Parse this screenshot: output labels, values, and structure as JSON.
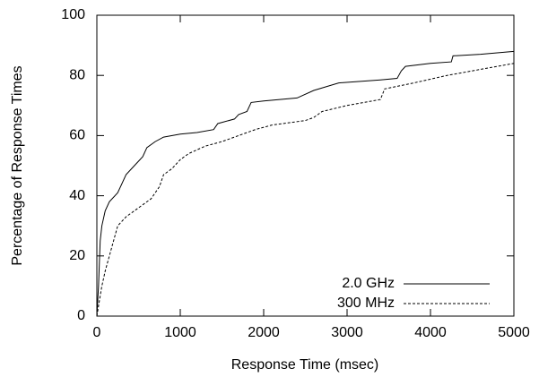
{
  "chart_data": {
    "type": "line",
    "xlabel": "Response Time (msec)",
    "ylabel": "Percentage of Response Times",
    "xlim": [
      0,
      5000
    ],
    "xticks": [
      0,
      1000,
      2000,
      3000,
      4000,
      5000
    ],
    "ylim": [
      0,
      100
    ],
    "yticks": [
      0,
      20,
      40,
      60,
      80,
      100
    ],
    "legend": "lower right",
    "series": [
      {
        "name": "2.0 GHz",
        "color": "#000000",
        "dash": "solid",
        "x": [
          0,
          20,
          40,
          60,
          100,
          150,
          250,
          300,
          350,
          450,
          550,
          600,
          700,
          800,
          1000,
          1200,
          1400,
          1450,
          1650,
          1700,
          1800,
          1850,
          2000,
          2400,
          2600,
          2900,
          3400,
          3600,
          3650,
          3700,
          4000,
          4250,
          4270,
          4600,
          5000
        ],
        "values": [
          0,
          10,
          25,
          30,
          35,
          38,
          41,
          44,
          47,
          50,
          53,
          56,
          58,
          59.5,
          60.5,
          61,
          62,
          64,
          65.5,
          67,
          68,
          71,
          71.5,
          72.5,
          75,
          77.5,
          78.5,
          79,
          81.5,
          83,
          84,
          84.5,
          86.5,
          87,
          88
        ]
      },
      {
        "name": "300 MHz",
        "color": "#000000",
        "dash": "dashed",
        "x": [
          0,
          30,
          60,
          100,
          150,
          200,
          250,
          350,
          500,
          650,
          750,
          800,
          900,
          1000,
          1100,
          1300,
          1500,
          1700,
          1900,
          2100,
          2500,
          2600,
          2700,
          3000,
          3400,
          3450,
          3800,
          4200,
          4600,
          5000
        ],
        "values": [
          0,
          5,
          10,
          15,
          20,
          25,
          30,
          33,
          36,
          39,
          43,
          47,
          49,
          52,
          54,
          56.5,
          58,
          60,
          62,
          63.5,
          65,
          66,
          68,
          70,
          72,
          75.5,
          77.5,
          80,
          82,
          84
        ]
      }
    ]
  }
}
